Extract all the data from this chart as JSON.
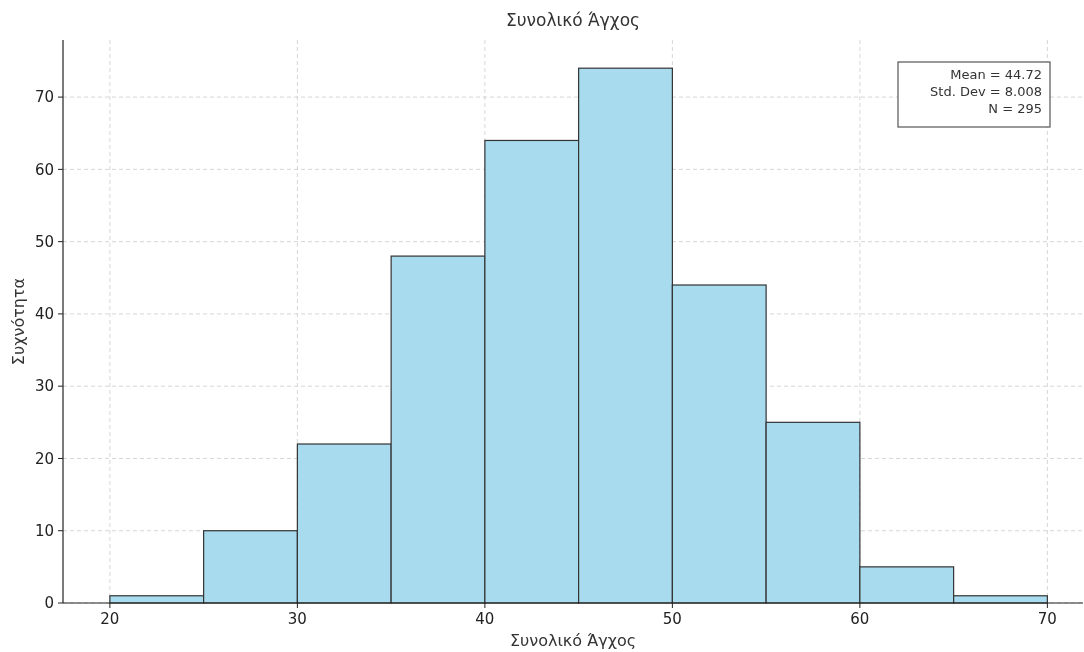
{
  "chart_data": {
    "type": "histogram",
    "title": "Συνολικό Άγχος",
    "xlabel": "Συνολικό Άγχος",
    "ylabel": "Συχνότητα",
    "bins": [
      20,
      25,
      30,
      35,
      40,
      45,
      50,
      55,
      60,
      65,
      70
    ],
    "values": [
      1,
      10,
      22,
      48,
      64,
      74,
      44,
      25,
      5,
      1
    ],
    "color": "#a8dbed",
    "xlim": [
      17.5,
      71.9
    ],
    "ylim": [
      0,
      77.9
    ],
    "xticks": [
      20,
      30,
      40,
      50,
      60,
      70
    ],
    "yticks": [
      0,
      10,
      20,
      30,
      40,
      50,
      60,
      70
    ],
    "grid": true,
    "annotations": [
      "Mean = 44.72\nStd. Dev = 8.008\nN = 295"
    ]
  }
}
